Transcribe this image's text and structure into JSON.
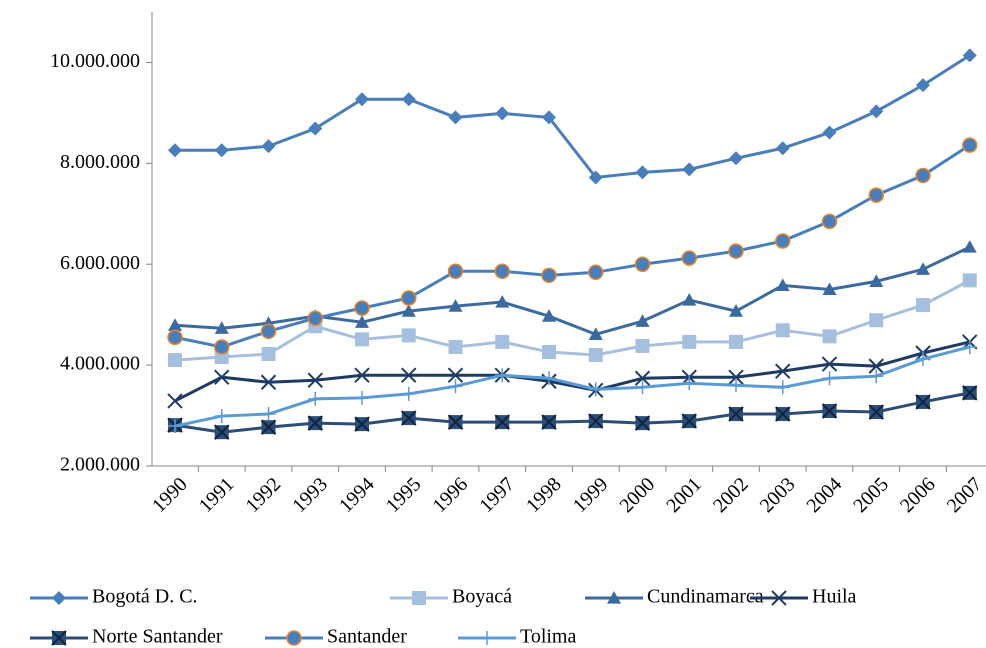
{
  "chart_data": {
    "type": "line",
    "categories": [
      "1990",
      "1991",
      "1992",
      "1993",
      "1994",
      "1995",
      "1996",
      "1997",
      "1998",
      "1999",
      "2000",
      "2001",
      "2002",
      "2003",
      "2004",
      "2005",
      "2006",
      "2007"
    ],
    "ylim": [
      2000000,
      11000000
    ],
    "yticks": [
      {
        "value": 2000000,
        "label": "2.000.000"
      },
      {
        "value": 4000000,
        "label": "4.000.000"
      },
      {
        "value": 6000000,
        "label": "6.000.000"
      },
      {
        "value": 8000000,
        "label": "8.000.000"
      },
      {
        "value": 10000000,
        "label": "10.000.000"
      }
    ],
    "grid": false,
    "legend": "bottom",
    "series": [
      {
        "name": "Bogotá D. C.",
        "color": "#4a7ebb",
        "marker": "diamond",
        "values": [
          8260000,
          8260000,
          8340000,
          8690000,
          9270000,
          9270000,
          8910000,
          8990000,
          8910000,
          7720000,
          7820000,
          7880000,
          8100000,
          8300000,
          8610000,
          9030000,
          9550000,
          10140000
        ]
      },
      {
        "name": "Boyacá",
        "color": "#a7bfde",
        "marker": "square",
        "values": [
          4100000,
          4160000,
          4220000,
          4770000,
          4510000,
          4590000,
          4360000,
          4460000,
          4260000,
          4200000,
          4380000,
          4460000,
          4460000,
          4690000,
          4570000,
          4890000,
          5190000,
          5680000
        ]
      },
      {
        "name": "Cundinamarca",
        "color": "#3d6a9e",
        "marker": "triangle",
        "values": [
          4790000,
          4730000,
          4830000,
          4970000,
          4850000,
          5070000,
          5170000,
          5250000,
          4970000,
          4610000,
          4870000,
          5290000,
          5070000,
          5580000,
          5500000,
          5660000,
          5900000,
          6340000
        ]
      },
      {
        "name": "Huila",
        "color": "#1f3b63",
        "marker": "x",
        "values": [
          3290000,
          3760000,
          3660000,
          3700000,
          3800000,
          3800000,
          3800000,
          3800000,
          3680000,
          3500000,
          3740000,
          3760000,
          3760000,
          3880000,
          4020000,
          3980000,
          4240000,
          4460000
        ]
      },
      {
        "name": "Norte Santander",
        "color": "#2c4d75",
        "marker": "boxx",
        "values": [
          2810000,
          2670000,
          2770000,
          2850000,
          2830000,
          2950000,
          2870000,
          2870000,
          2870000,
          2890000,
          2850000,
          2890000,
          3030000,
          3030000,
          3090000,
          3070000,
          3270000,
          3450000
        ]
      },
      {
        "name": "Santander",
        "color": "#4a7ebb",
        "marker": "circle",
        "values": [
          4550000,
          4360000,
          4670000,
          4930000,
          5130000,
          5330000,
          5860000,
          5860000,
          5780000,
          5840000,
          6000000,
          6120000,
          6260000,
          6460000,
          6850000,
          7370000,
          7760000,
          8360000
        ]
      },
      {
        "name": "Tolima",
        "color": "#5b9bd5",
        "marker": "plus",
        "values": [
          2790000,
          2990000,
          3030000,
          3330000,
          3350000,
          3430000,
          3580000,
          3800000,
          3740000,
          3520000,
          3560000,
          3640000,
          3600000,
          3560000,
          3740000,
          3780000,
          4120000,
          4360000
        ]
      }
    ]
  }
}
